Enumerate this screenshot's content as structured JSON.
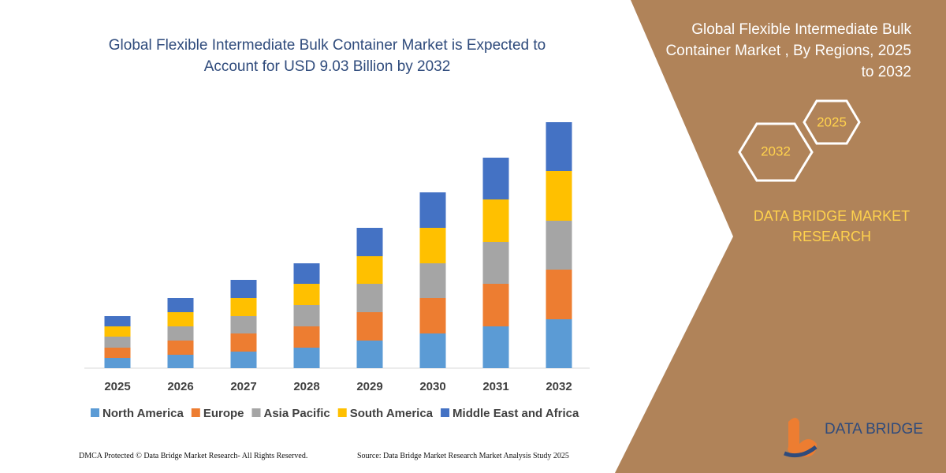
{
  "chart_data": {
    "type": "bar",
    "stacked": true,
    "title": "Global Flexible Intermediate Bulk Container Market is Expected to Account for USD 9.03 Billion by 2032",
    "categories": [
      "2025",
      "2026",
      "2027",
      "2028",
      "2029",
      "2030",
      "2031",
      "2032"
    ],
    "series": [
      {
        "name": "North America",
        "color": "#5b9bd5",
        "values": [
          13,
          17,
          21,
          26,
          35,
          44,
          53,
          62
        ]
      },
      {
        "name": "Europe",
        "color": "#ed7d31",
        "values": [
          13,
          18,
          23,
          27,
          36,
          45,
          54,
          63
        ]
      },
      {
        "name": "Asia Pacific",
        "color": "#a5a5a5",
        "values": [
          14,
          18,
          22,
          27,
          36,
          44,
          53,
          62
        ]
      },
      {
        "name": "South America",
        "color": "#ffc000",
        "values": [
          13,
          18,
          23,
          27,
          35,
          45,
          54,
          63
        ]
      },
      {
        "name": "Middle East and Africa",
        "color": "#4472c4",
        "values": [
          13,
          18,
          23,
          26,
          36,
          45,
          53,
          62
        ]
      }
    ]
  },
  "panel": {
    "title": "Global Flexible Intermediate Bulk Container Market , By Regions, 2025 to 2032",
    "hexagons": [
      "2025",
      "2032"
    ],
    "brand": "DATA BRIDGE MARKET RESEARCH"
  },
  "logo": {
    "text": "DATA BRIDGE"
  },
  "footer": {
    "left": "DMCA Protected © Data Bridge Market Research- All Rights Reserved.",
    "right": "Source: Data Bridge Market Research Market Analysis Study 2025"
  }
}
